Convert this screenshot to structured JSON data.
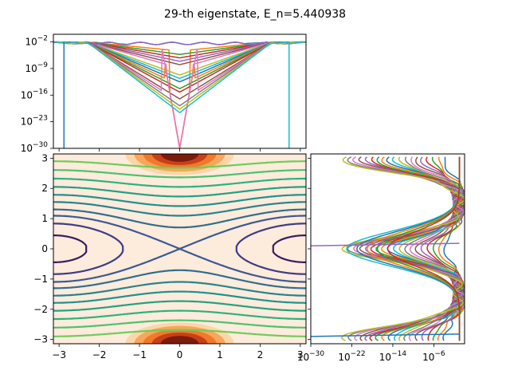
{
  "chart_data": [
    {
      "panel": "top",
      "type": "line",
      "title": "29-th eigenstate, E_n=5.440938",
      "xlabel": "",
      "ylabel": "",
      "xlim": [
        -3.14159,
        3.14159
      ],
      "ylim_log10": [
        -30,
        0
      ],
      "yscale": "log",
      "y_ticks": [
        "10^{-2}",
        "10^{-9}",
        "10^{-16}",
        "10^{-23}",
        "10^{-30}"
      ],
      "y_tick_values_log10": [
        -2,
        -9,
        -16,
        -23,
        -30
      ],
      "x_ticks_visible": false,
      "series_count": 20,
      "palette": [
        "#1f77b4",
        "#ff7f0e",
        "#2ca02c",
        "#d62728",
        "#9467bd",
        "#8c564b",
        "#e377c2",
        "#7f7f7f",
        "#bcbd22",
        "#17becf"
      ]
    },
    {
      "panel": "main",
      "type": "contour",
      "xlim": [
        -3.14159,
        3.14159
      ],
      "ylim": [
        -3.14159,
        3.14159
      ],
      "x_ticks": [
        "−3",
        "−2",
        "−1",
        "0",
        "1",
        "2",
        "3"
      ],
      "x_tick_values": [
        -3,
        -2,
        -1,
        0,
        1,
        2,
        3
      ],
      "y_ticks": [
        "−3",
        "−2",
        "−1",
        "0",
        "1",
        "2",
        "3"
      ],
      "y_tick_values": [
        -3,
        -2,
        -1,
        0,
        1,
        2,
        3
      ],
      "background_color": "#fdebdc",
      "separatrix_energy": 0.6,
      "line_levels": [
        0.1,
        0.35,
        0.6,
        0.85,
        1.2,
        1.6,
        2.1,
        2.7,
        3.4,
        4.2
      ],
      "line_colors": [
        "#3b1b5e",
        "#3e3b87",
        "#3b5a92",
        "#2f6e8e",
        "#27838d",
        "#21918c",
        "#23a183",
        "#2db27d",
        "#4cc26c",
        "#6ccd5a"
      ],
      "heat_colors": [
        "#fcd6a8",
        "#f8a65a",
        "#f07a2a",
        "#c8401a",
        "#7a1c0c"
      ]
    },
    {
      "panel": "right",
      "type": "line",
      "xscale": "log",
      "xlim_log10": [
        -30,
        0
      ],
      "x_ticks": [
        "10^{-30}",
        "10^{-22}",
        "10^{-14}",
        "10^{-6}"
      ],
      "x_tick_values_log10": [
        -30,
        -22,
        -14,
        -6
      ],
      "ylim": [
        -3.14159,
        3.14159
      ],
      "y_ticks_visible": false,
      "series_count": 24,
      "palette": [
        "#1f77b4",
        "#ff7f0e",
        "#2ca02c",
        "#d62728",
        "#9467bd",
        "#8c564b",
        "#e377c2",
        "#7f7f7f",
        "#bcbd22",
        "#17becf"
      ]
    }
  ]
}
